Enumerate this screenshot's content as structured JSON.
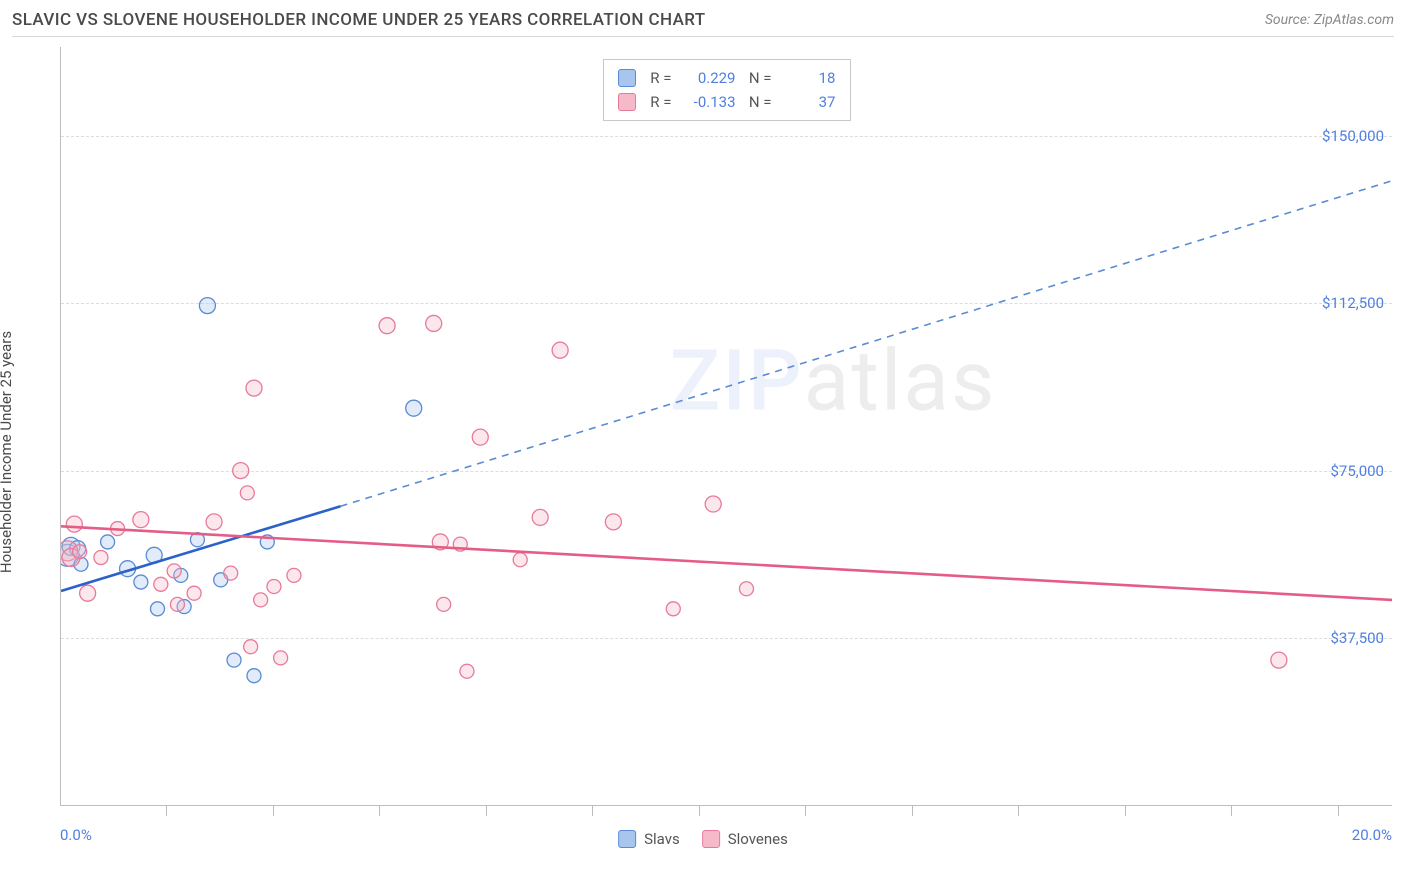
{
  "title": "SLAVIC VS SLOVENE HOUSEHOLDER INCOME UNDER 25 YEARS CORRELATION CHART",
  "source": "Source: ZipAtlas.com",
  "ylabel": "Householder Income Under 25 years",
  "watermark_zip": "ZIP",
  "watermark_atlas": "atlas",
  "chart": {
    "type": "scatter",
    "xlim": [
      0,
      20
    ],
    "ylim": [
      0,
      170000
    ],
    "x_start_label": "0.0%",
    "x_end_label": "20.0%",
    "xtick_positions_pct": [
      8,
      16,
      24,
      32,
      40,
      48,
      56,
      64,
      72,
      80,
      88,
      96
    ],
    "y_gridlines": [
      {
        "value": 37500,
        "label": "$37,500"
      },
      {
        "value": 75000,
        "label": "$75,000"
      },
      {
        "value": 112500,
        "label": "$112,500"
      },
      {
        "value": 150000,
        "label": "$150,000"
      }
    ],
    "series": [
      {
        "name": "Slavs",
        "color_fill": "#a8c6ed",
        "color_stroke": "#5a8bd4",
        "stats": {
          "R": "0.229",
          "N": "18"
        },
        "trend_solid": {
          "x1": 0,
          "y1": 48000,
          "x2": 4.2,
          "y2": 67000,
          "color": "#2a62c9"
        },
        "trend_dash": {
          "x1": 4.2,
          "y1": 67000,
          "x2": 20.0,
          "y2": 140000,
          "color": "#5a8bd4"
        },
        "points": [
          {
            "x": 0.1,
            "y": 56000,
            "r": 11
          },
          {
            "x": 0.15,
            "y": 58000,
            "r": 9
          },
          {
            "x": 0.25,
            "y": 57500,
            "r": 8
          },
          {
            "x": 0.3,
            "y": 54000,
            "r": 7
          },
          {
            "x": 0.7,
            "y": 59000,
            "r": 7
          },
          {
            "x": 1.0,
            "y": 53000,
            "r": 8
          },
          {
            "x": 1.2,
            "y": 50000,
            "r": 7
          },
          {
            "x": 1.4,
            "y": 56000,
            "r": 8
          },
          {
            "x": 1.45,
            "y": 44000,
            "r": 7
          },
          {
            "x": 1.8,
            "y": 51500,
            "r": 7
          },
          {
            "x": 1.85,
            "y": 44500,
            "r": 7
          },
          {
            "x": 2.05,
            "y": 59500,
            "r": 7
          },
          {
            "x": 2.4,
            "y": 50500,
            "r": 7
          },
          {
            "x": 2.2,
            "y": 112000,
            "r": 8
          },
          {
            "x": 2.6,
            "y": 32500,
            "r": 7
          },
          {
            "x": 2.9,
            "y": 29000,
            "r": 7
          },
          {
            "x": 3.1,
            "y": 59000,
            "r": 7
          },
          {
            "x": 5.3,
            "y": 89000,
            "r": 8
          }
        ]
      },
      {
        "name": "Slovenes",
        "color_fill": "#f5b9c9",
        "color_stroke": "#e77a9a",
        "stats": {
          "R": "-0.133",
          "N": "37"
        },
        "trend_solid": {
          "x1": 0,
          "y1": 62500,
          "x2": 20.0,
          "y2": 46000,
          "color": "#e45d86"
        },
        "trend_dash": null,
        "points": [
          {
            "x": 0.1,
            "y": 57000,
            "r": 10
          },
          {
            "x": 0.15,
            "y": 55500,
            "r": 9
          },
          {
            "x": 0.2,
            "y": 63000,
            "r": 8
          },
          {
            "x": 0.28,
            "y": 56800,
            "r": 7
          },
          {
            "x": 0.4,
            "y": 47500,
            "r": 8
          },
          {
            "x": 0.6,
            "y": 55500,
            "r": 7
          },
          {
            "x": 0.85,
            "y": 62000,
            "r": 7
          },
          {
            "x": 1.2,
            "y": 64000,
            "r": 8
          },
          {
            "x": 1.5,
            "y": 49500,
            "r": 7
          },
          {
            "x": 1.7,
            "y": 52500,
            "r": 7
          },
          {
            "x": 1.75,
            "y": 45000,
            "r": 7
          },
          {
            "x": 2.0,
            "y": 47500,
            "r": 7
          },
          {
            "x": 2.3,
            "y": 63500,
            "r": 8
          },
          {
            "x": 2.55,
            "y": 52000,
            "r": 7
          },
          {
            "x": 2.7,
            "y": 75000,
            "r": 8
          },
          {
            "x": 2.8,
            "y": 70000,
            "r": 7
          },
          {
            "x": 2.85,
            "y": 35500,
            "r": 7
          },
          {
            "x": 2.9,
            "y": 93500,
            "r": 8
          },
          {
            "x": 3.0,
            "y": 46000,
            "r": 7
          },
          {
            "x": 3.2,
            "y": 49000,
            "r": 7
          },
          {
            "x": 3.3,
            "y": 33000,
            "r": 7
          },
          {
            "x": 3.5,
            "y": 51500,
            "r": 7
          },
          {
            "x": 4.9,
            "y": 107500,
            "r": 8
          },
          {
            "x": 5.6,
            "y": 108000,
            "r": 8
          },
          {
            "x": 5.7,
            "y": 59000,
            "r": 8
          },
          {
            "x": 5.75,
            "y": 45000,
            "r": 7
          },
          {
            "x": 6.0,
            "y": 58500,
            "r": 7
          },
          {
            "x": 6.1,
            "y": 30000,
            "r": 7
          },
          {
            "x": 6.3,
            "y": 82500,
            "r": 8
          },
          {
            "x": 6.9,
            "y": 55000,
            "r": 7
          },
          {
            "x": 7.2,
            "y": 64500,
            "r": 8
          },
          {
            "x": 7.5,
            "y": 102000,
            "r": 8
          },
          {
            "x": 8.3,
            "y": 63500,
            "r": 8
          },
          {
            "x": 9.2,
            "y": 44000,
            "r": 7
          },
          {
            "x": 9.8,
            "y": 67500,
            "r": 8
          },
          {
            "x": 10.3,
            "y": 48500,
            "r": 7
          },
          {
            "x": 18.3,
            "y": 32500,
            "r": 8
          }
        ]
      }
    ]
  },
  "legend_top_prefix_R": "R =",
  "legend_top_prefix_N": "N =",
  "legend_bottom": [
    "Slavs",
    "Slovenes"
  ]
}
